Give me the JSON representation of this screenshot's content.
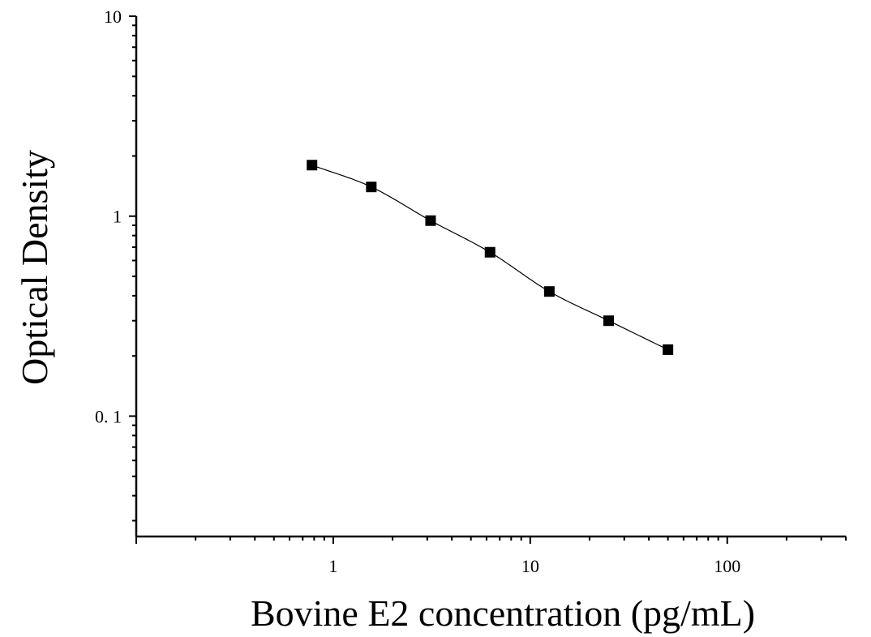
{
  "chart_data": {
    "type": "scatter",
    "title": "",
    "xlabel": "Bovine E2 concentration (pg/mL)",
    "ylabel": "Optical Density",
    "x_scale": "log",
    "y_scale": "log",
    "xlim": [
      0.1,
      400
    ],
    "ylim": [
      0.025,
      10
    ],
    "x_ticks": [
      {
        "value": 1,
        "label": "1"
      },
      {
        "value": 10,
        "label": "10"
      },
      {
        "value": 100,
        "label": "100"
      }
    ],
    "y_ticks": [
      {
        "value": 0.1,
        "label": "0. 1"
      },
      {
        "value": 1,
        "label": "1"
      },
      {
        "value": 10,
        "label": "10"
      }
    ],
    "grid": false,
    "legend": "none",
    "marker": "square",
    "color": "#000000",
    "series": [
      {
        "x": [
          0.78,
          1.56,
          3.12,
          6.25,
          12.5,
          25,
          50
        ],
        "y": [
          1.8,
          1.4,
          0.95,
          0.66,
          0.42,
          0.3,
          0.215
        ]
      }
    ],
    "fit_curve": "smooth"
  }
}
